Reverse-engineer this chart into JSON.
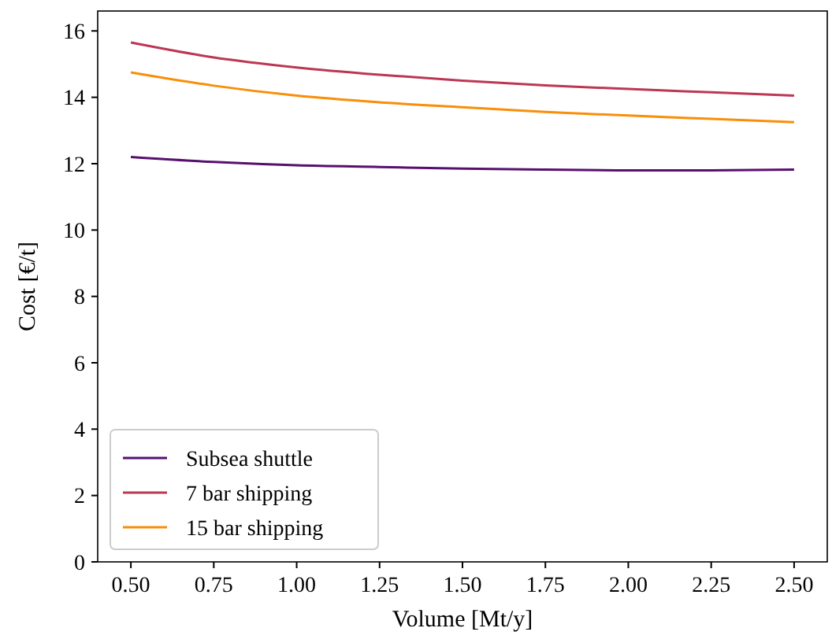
{
  "chart_data": {
    "type": "line",
    "xlabel": "Volume [Mt/y]",
    "ylabel": "Cost [€/t]",
    "x": [
      0.5,
      0.75,
      1.0,
      1.25,
      1.5,
      1.75,
      2.0,
      2.25,
      2.5
    ],
    "series": [
      {
        "name": "Subsea shuttle",
        "color": "#57106e",
        "values": [
          12.2,
          12.05,
          11.95,
          11.9,
          11.85,
          11.82,
          11.8,
          11.8,
          11.82
        ]
      },
      {
        "name": "7 bar shipping",
        "color": "#bc3754",
        "values": [
          15.65,
          15.2,
          14.9,
          14.68,
          14.5,
          14.36,
          14.25,
          14.15,
          14.05
        ]
      },
      {
        "name": "15 bar shipping",
        "color": "#f98e09",
        "values": [
          14.75,
          14.35,
          14.05,
          13.85,
          13.7,
          13.56,
          13.45,
          13.35,
          13.25
        ]
      }
    ],
    "xlim": [
      0.4,
      2.6
    ],
    "ylim": [
      0,
      16.6
    ],
    "xticks": [
      {
        "value": 0.5,
        "label": "0.50"
      },
      {
        "value": 0.75,
        "label": "0.75"
      },
      {
        "value": 1.0,
        "label": "1.00"
      },
      {
        "value": 1.25,
        "label": "1.25"
      },
      {
        "value": 1.5,
        "label": "1.50"
      },
      {
        "value": 1.75,
        "label": "1.75"
      },
      {
        "value": 2.0,
        "label": "2.00"
      },
      {
        "value": 2.25,
        "label": "2.25"
      },
      {
        "value": 2.5,
        "label": "2.50"
      }
    ],
    "yticks": [
      0,
      2,
      4,
      6,
      8,
      10,
      12,
      14,
      16
    ],
    "legend": "bottom left",
    "grid": false,
    "marker": "none",
    "line_style": "solid"
  }
}
